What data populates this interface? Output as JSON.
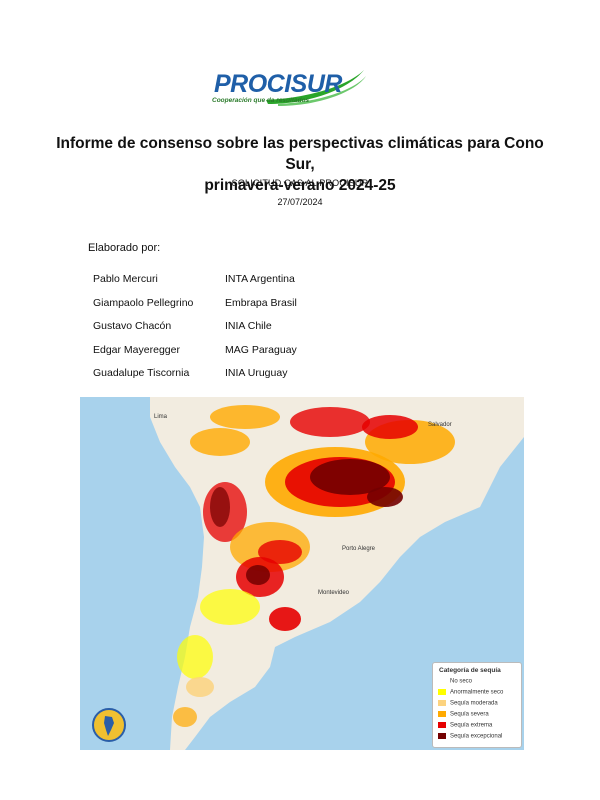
{
  "logo": {
    "name": "PROCISUR",
    "tagline": "Cooperación que da resultados"
  },
  "title_line1": "Informe de consenso sobre las perspectivas climáticas para Cono Sur,",
  "title_line2": "primavera-verano 2024-25",
  "subtitle": "SOLICITUD CAS AL PROCISUR",
  "date": "27/07/2024",
  "prepared_by": "Elaborado por:",
  "authors": [
    {
      "name": "Pablo Mercuri",
      "institution": "INTA Argentina"
    },
    {
      "name": "Giampaolo Pellegrino",
      "institution": "Embrapa Brasil"
    },
    {
      "name": "Gustavo Chacón",
      "institution": "INIA Chile"
    },
    {
      "name": "Edgar Mayeregger",
      "institution": "MAG Paraguay"
    },
    {
      "name": "Guadalupe Tiscornia",
      "institution": "INIA Uruguay"
    }
  ],
  "map": {
    "places": {
      "lima": "Lima",
      "salvador": "Salvador",
      "porto_alegre": "Porto Alegre",
      "montevideo": "Montevideo"
    },
    "legend": {
      "title": "Categoría de sequía",
      "items": [
        {
          "label": "No seco",
          "color": "#ffffff"
        },
        {
          "label": "Anormalmente seco",
          "color": "#ffff00"
        },
        {
          "label": "Sequía moderada",
          "color": "#fcd37f"
        },
        {
          "label": "Sequía severa",
          "color": "#ffaa00"
        },
        {
          "label": "Sequía extrema",
          "color": "#e60000"
        },
        {
          "label": "Sequía excepcional",
          "color": "#730000"
        }
      ]
    }
  },
  "colors": {
    "logo_blue": "#1f5fa8",
    "logo_green": "#2aa52a",
    "ocean": "#a8d2ec",
    "land": "#f2ece0"
  }
}
